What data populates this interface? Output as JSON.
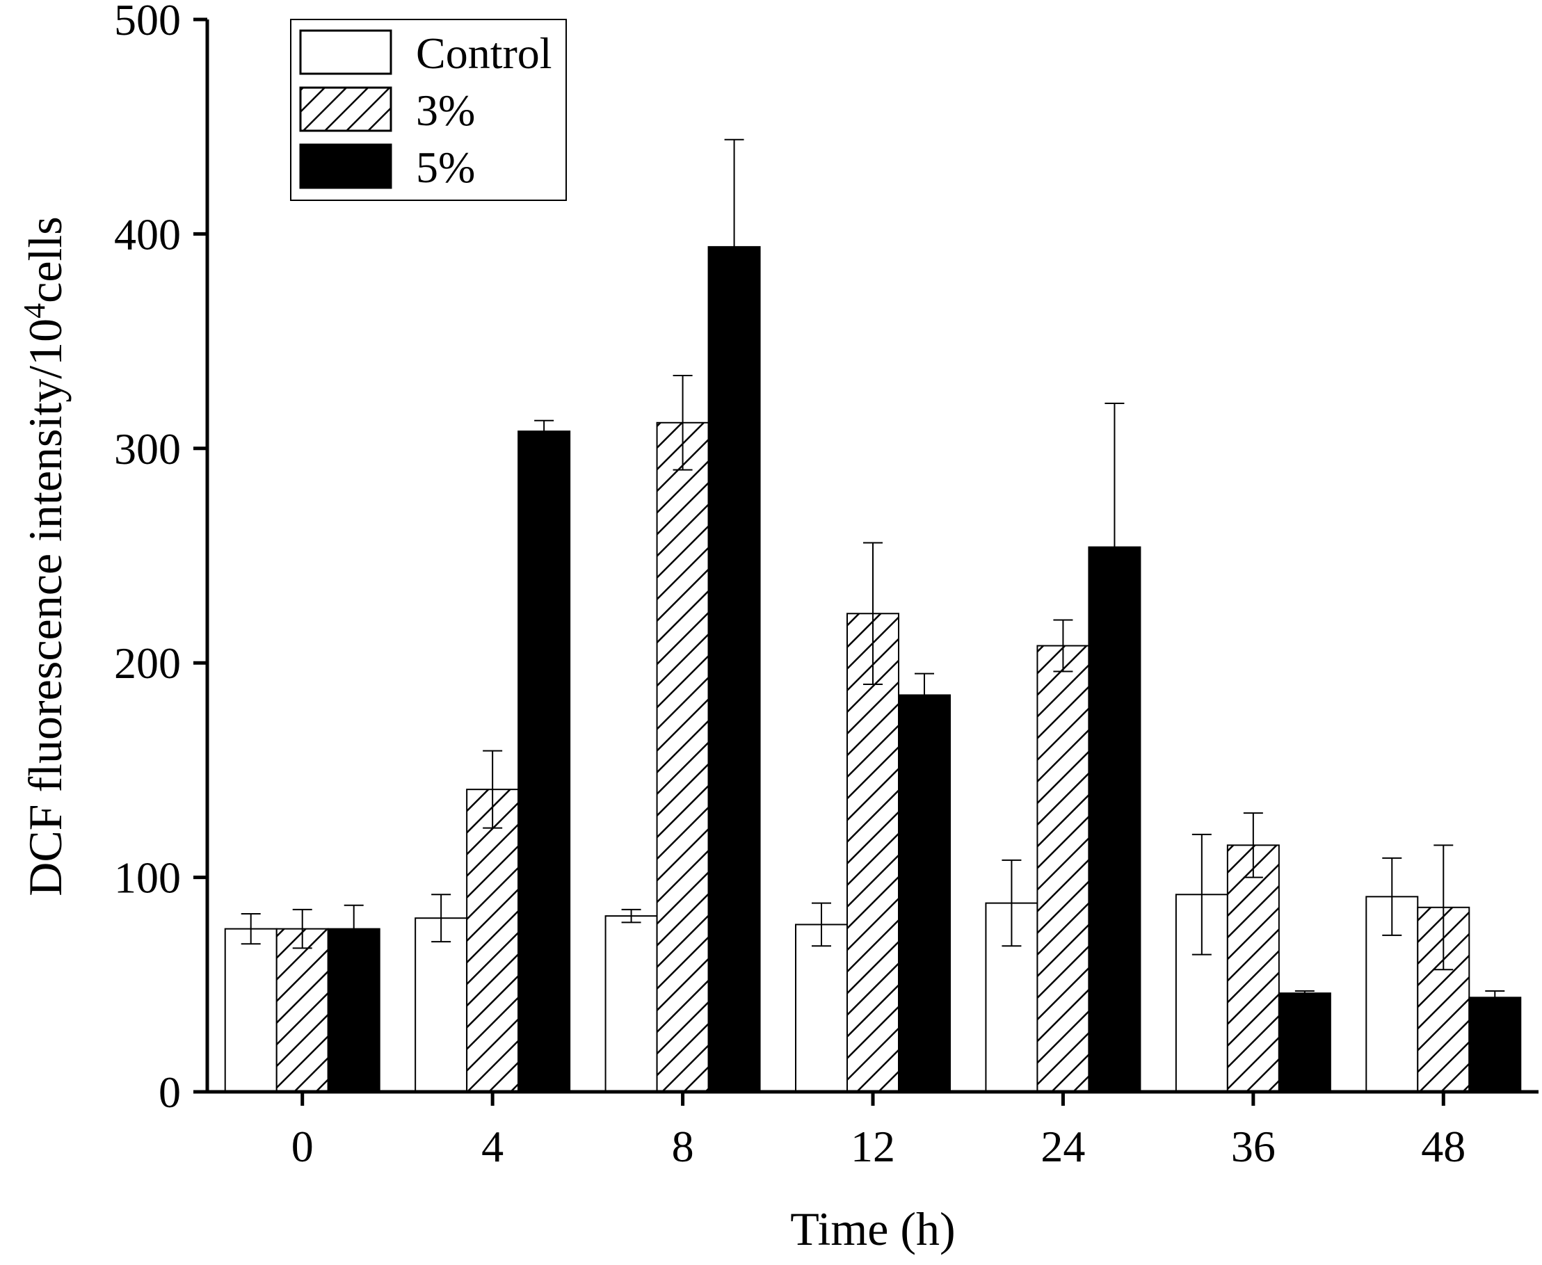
{
  "chart_data": {
    "type": "bar",
    "title": "",
    "xlabel": "Time (h)",
    "ylabel": {
      "main": "DCF fluorescence intensity/10",
      "sup": "4",
      "tail": "cells"
    },
    "ylim": [
      0,
      500
    ],
    "yticks": [
      0,
      100,
      200,
      300,
      400,
      500
    ],
    "categories": [
      "0",
      "4",
      "8",
      "12",
      "24",
      "36",
      "48"
    ],
    "legend_position": "top-left",
    "series": [
      {
        "name": "Control",
        "fill": "white",
        "values": [
          76,
          81,
          82,
          78,
          88,
          92,
          91
        ],
        "errors": [
          7,
          11,
          3,
          10,
          20,
          28,
          18
        ]
      },
      {
        "name": "3%",
        "fill": "hatch",
        "values": [
          76,
          141,
          312,
          223,
          208,
          115,
          86
        ],
        "errors": [
          9,
          18,
          22,
          33,
          12,
          15,
          29
        ]
      },
      {
        "name": "5%",
        "fill": "black",
        "values": [
          76,
          308,
          394,
          185,
          254,
          46,
          44
        ],
        "errors": [
          11,
          5,
          50,
          10,
          67,
          1,
          3
        ]
      }
    ],
    "colors": {
      "axis": "#000000",
      "bar_stroke": "#000000",
      "solid": "#000000",
      "empty": "#ffffff"
    }
  }
}
